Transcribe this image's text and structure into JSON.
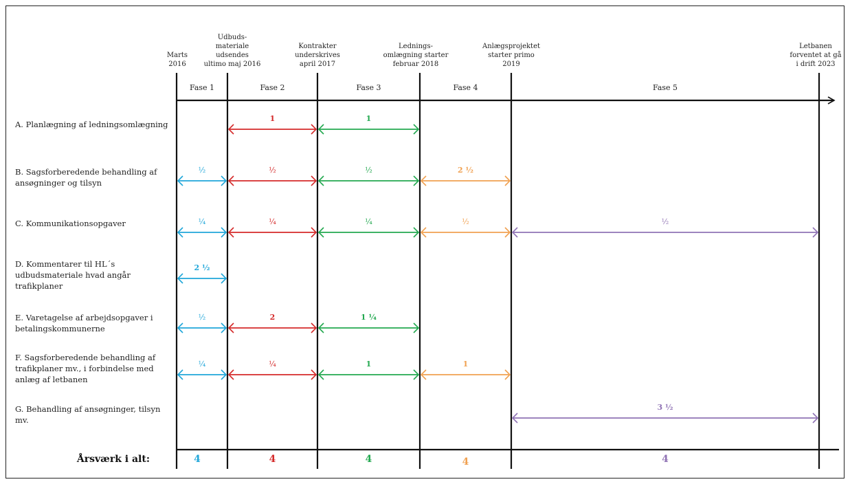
{
  "colors": {
    "phase1": "#1fa6d9",
    "phase2": "#d42a2a",
    "phase3": "#22a84f",
    "phase4": "#f0a050",
    "phase5": "#8f72b4",
    "lines": "#111111"
  },
  "milestones": [
    {
      "lines": [
        "Marts",
        "2016"
      ]
    },
    {
      "lines": [
        "Udbuds-",
        "materiale",
        "udsendes",
        "ultimo maj 2016"
      ]
    },
    {
      "lines": [
        "Kontrakter",
        "underskrives",
        "april 2017"
      ]
    },
    {
      "lines": [
        "Lednings-",
        "omlægning starter",
        "februar 2018"
      ]
    },
    {
      "lines": [
        "Anlægsprojektet",
        "starter primo",
        "2019"
      ]
    },
    {
      "lines": [
        "Letbanen",
        "forventet at gå",
        "i drift 2023"
      ]
    }
  ],
  "phases": [
    "Fase 1",
    "Fase 2",
    "Fase 3",
    "Fase 4",
    "Fase 5"
  ],
  "tasks": [
    {
      "lines": [
        "A. Planlægning af ledningsomlægning"
      ],
      "segments": [
        {
          "phase": 2,
          "label": "1"
        },
        {
          "phase": 3,
          "label": "1"
        }
      ]
    },
    {
      "lines": [
        "B. Sagsforberedende behandling af",
        "ansøgninger og tilsyn"
      ],
      "segments": [
        {
          "phase": 1,
          "label": "½"
        },
        {
          "phase": 2,
          "label": "½"
        },
        {
          "phase": 3,
          "label": "½"
        },
        {
          "phase": 4,
          "label": "2 ½"
        }
      ]
    },
    {
      "lines": [
        "C. Kommunikationsopgaver"
      ],
      "segments": [
        {
          "phase": 1,
          "label": "¼"
        },
        {
          "phase": 2,
          "label": "¼"
        },
        {
          "phase": 3,
          "label": "¼"
        },
        {
          "phase": 4,
          "label": "½"
        },
        {
          "phase": 5,
          "label": "½"
        }
      ]
    },
    {
      "lines": [
        "D. Kommentarer til HL´s",
        "udbudsmateriale hvad angår",
        "trafikplaner"
      ],
      "segments": [
        {
          "phase": 1,
          "label": "2 ½"
        }
      ]
    },
    {
      "lines": [
        "E. Varetagelse af arbejdsopgaver i",
        "betalingskommunerne"
      ],
      "segments": [
        {
          "phase": 1,
          "label": "½"
        },
        {
          "phase": 2,
          "label": "2"
        },
        {
          "phase": 3,
          "label": "1 ¼"
        }
      ]
    },
    {
      "lines": [
        "F. Sagsforberedende behandling af",
        "trafikplaner mv., i forbindelse med",
        "anlæg af letbanen"
      ],
      "segments": [
        {
          "phase": 1,
          "label": "¼"
        },
        {
          "phase": 2,
          "label": "¼"
        },
        {
          "phase": 3,
          "label": "1"
        },
        {
          "phase": 4,
          "label": "1"
        }
      ]
    },
    {
      "lines": [
        "G. Behandling af ansøgninger, tilsyn",
        "mv."
      ],
      "segments": [
        {
          "phase": 5,
          "label": "3 ½"
        }
      ]
    }
  ],
  "totals": {
    "label": "Årsværk i alt:",
    "values": [
      "4",
      "4",
      "4",
      "4",
      "4"
    ]
  }
}
